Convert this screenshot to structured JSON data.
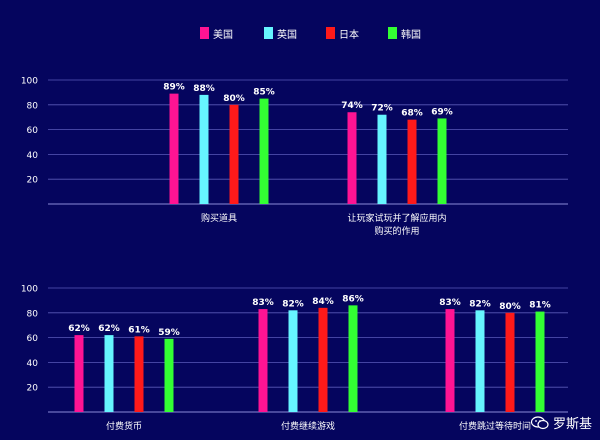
{
  "legend": [
    {
      "name": "美国",
      "color": "#ff1493"
    },
    {
      "name": "英国",
      "color": "#66f5ff"
    },
    {
      "name": "日本",
      "color": "#ff1a1a"
    },
    {
      "name": "韩国",
      "color": "#33ff33"
    }
  ],
  "watermark": "罗斯基",
  "chart_data": [
    {
      "type": "bar",
      "categories": [
        "购买道具",
        "让玩家试玩并了解应用内购买的作用"
      ],
      "category_lines": [
        [
          "购买道具"
        ],
        [
          "让玩家试玩并了解应用内",
          "购买的作用"
        ]
      ],
      "series": [
        {
          "name": "美国",
          "values": [
            89,
            74
          ],
          "labels": [
            "89%",
            "74%"
          ]
        },
        {
          "name": "英国",
          "values": [
            88,
            72
          ],
          "labels": [
            "88%",
            "72%"
          ]
        },
        {
          "name": "日本",
          "values": [
            80,
            68
          ],
          "labels": [
            "80%",
            "68%"
          ]
        },
        {
          "name": "韩国",
          "values": [
            85,
            69
          ],
          "labels": [
            "85%",
            "69%"
          ]
        }
      ],
      "yticks": [
        "20",
        "40",
        "60",
        "80",
        "100"
      ],
      "ylim": [
        0,
        100
      ],
      "grid": true
    },
    {
      "type": "bar",
      "categories": [
        "付费货币",
        "付费继续游戏",
        "付费跳过等待时间"
      ],
      "category_lines": [
        [
          "付费货币"
        ],
        [
          "付费继续游戏"
        ],
        [
          "付费跳过等待时间"
        ]
      ],
      "series": [
        {
          "name": "美国",
          "values": [
            62,
            83,
            83
          ],
          "labels": [
            "62%",
            "83%",
            "83%"
          ]
        },
        {
          "name": "英国",
          "values": [
            62,
            82,
            82
          ],
          "labels": [
            "62%",
            "82%",
            "82%"
          ]
        },
        {
          "name": "日本",
          "values": [
            61,
            84,
            80
          ],
          "labels": [
            "61%",
            "84%",
            "80%"
          ]
        },
        {
          "name": "韩国",
          "values": [
            59,
            86,
            81
          ],
          "labels": [
            "59%",
            "86%",
            "81%"
          ]
        }
      ],
      "yticks": [
        "20",
        "40",
        "60",
        "80",
        "100"
      ],
      "ylim": [
        0,
        100
      ],
      "grid": true
    }
  ]
}
